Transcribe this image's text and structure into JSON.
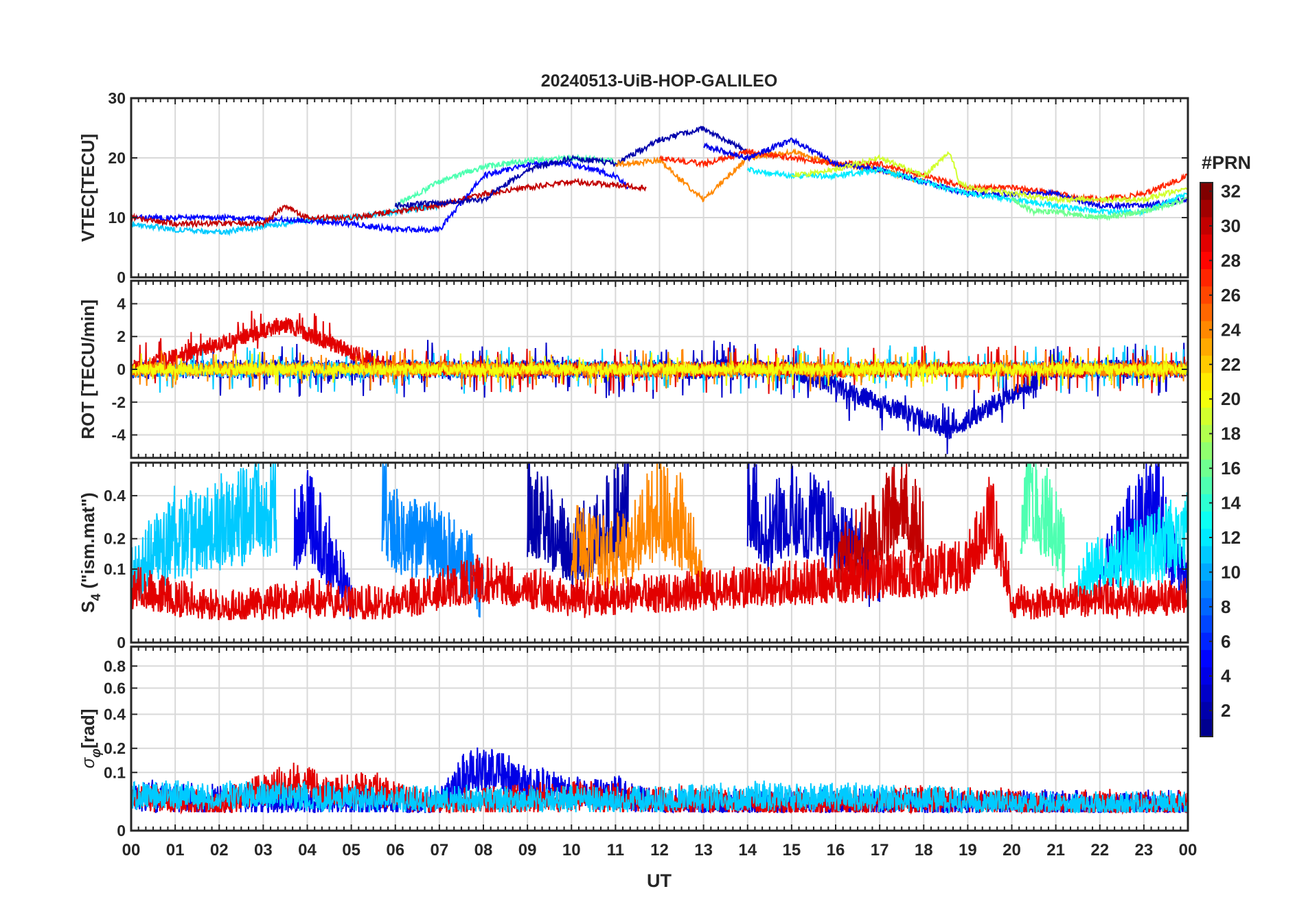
{
  "figure": {
    "title": "20240513-UiB-HOP-GALILEO",
    "xlabel": "UT",
    "x_ticks": [
      "00",
      "01",
      "02",
      "03",
      "04",
      "05",
      "06",
      "07",
      "08",
      "09",
      "10",
      "11",
      "12",
      "13",
      "14",
      "15",
      "16",
      "17",
      "18",
      "19",
      "20",
      "21",
      "22",
      "23",
      "00"
    ],
    "colorbar": {
      "label": "#PRN",
      "ticks": [
        "32",
        "30",
        "28",
        "26",
        "24",
        "22",
        "20",
        "18",
        "16",
        "14",
        "12",
        "10",
        "8",
        "6",
        "4",
        "2"
      ],
      "range": [
        1,
        32
      ],
      "colormap": "jet",
      "colors": [
        "#00008f",
        "#0000ff",
        "#0080ff",
        "#00ffff",
        "#80ff80",
        "#ffff00",
        "#ff8000",
        "#ff0000",
        "#800000"
      ]
    }
  },
  "chart_data": [
    {
      "type": "line",
      "name": "vtec",
      "ylabel": "VTEC[TECU]",
      "ylim": [
        0,
        30
      ],
      "x_range_hours": [
        0,
        24
      ],
      "grid": true,
      "y_ticks": [
        "30",
        "20",
        "10",
        "0"
      ],
      "series": [
        {
          "prn": 11,
          "x": [
            0,
            1,
            2,
            3,
            4,
            5,
            6,
            7
          ],
          "y": [
            9,
            8,
            7.5,
            8.5,
            9.5,
            10,
            11,
            12
          ]
        },
        {
          "prn": 5,
          "x": [
            0,
            2,
            4,
            5,
            6,
            7,
            8,
            9,
            10,
            11,
            11.3
          ],
          "y": [
            10,
            10,
            9.5,
            9,
            8,
            8,
            17,
            19,
            19,
            17,
            15
          ]
        },
        {
          "prn": 30,
          "x": [
            0,
            1,
            2,
            3,
            3.5,
            4,
            5,
            6,
            7,
            8,
            9,
            10,
            11,
            11.7
          ],
          "y": [
            10,
            9,
            9,
            9,
            12,
            10,
            10,
            11,
            12,
            14,
            15,
            16,
            15.5,
            15
          ]
        },
        {
          "prn": 15,
          "x": [
            6,
            7,
            8,
            9,
            10,
            11
          ],
          "y": [
            12,
            16,
            18.5,
            19.5,
            20,
            19.5
          ]
        },
        {
          "prn": 2,
          "x": [
            6,
            8,
            9,
            10,
            11,
            12,
            13,
            14
          ],
          "y": [
            12,
            13,
            18,
            20,
            19,
            23,
            25,
            21
          ]
        },
        {
          "prn": 24,
          "x": [
            11,
            12,
            13,
            14,
            15,
            16,
            17,
            18
          ],
          "y": [
            19,
            19.5,
            13,
            20,
            21,
            19,
            18,
            16
          ]
        },
        {
          "prn": 27,
          "x": [
            12,
            13,
            14,
            15,
            16,
            17,
            18,
            19,
            20,
            21,
            22,
            23,
            24
          ],
          "y": [
            20,
            19,
            21,
            20,
            19,
            19,
            17,
            15,
            15,
            14,
            13,
            14,
            17
          ]
        },
        {
          "prn": 4,
          "x": [
            13,
            14,
            15,
            16,
            17,
            18,
            19,
            20,
            21,
            22,
            23,
            24
          ],
          "y": [
            22,
            20,
            23,
            19,
            18,
            16,
            14,
            14,
            14,
            12,
            12,
            13
          ]
        },
        {
          "prn": 12,
          "x": [
            14,
            15,
            16,
            17,
            18,
            19,
            20,
            21,
            22,
            23,
            24
          ],
          "y": [
            18,
            17,
            17,
            18,
            16,
            14,
            13,
            12,
            11,
            11,
            14
          ]
        },
        {
          "prn": 19,
          "x": [
            15,
            16,
            17,
            18,
            18.6,
            18.8,
            19,
            20,
            21,
            22,
            23,
            24
          ],
          "y": [
            17,
            18,
            20,
            17,
            21,
            16,
            15,
            14,
            13,
            13,
            13,
            15
          ]
        },
        {
          "prn": 16,
          "x": [
            20,
            20.5,
            21,
            22,
            23,
            24
          ],
          "y": [
            13,
            11,
            11,
            10,
            11,
            13
          ]
        }
      ]
    },
    {
      "type": "line",
      "name": "rot",
      "ylabel": "ROT [TECU/min]",
      "ylim": [
        -5.4,
        5.4
      ],
      "x_range_hours": [
        0,
        24
      ],
      "grid": true,
      "y_ticks": [
        "4",
        "2",
        "0",
        "-2",
        "-4"
      ],
      "series": [
        {
          "prn": 3,
          "x": [
            0,
            4,
            8,
            10,
            12,
            15,
            18.6,
            21,
            24
          ],
          "y": [
            0,
            0,
            0,
            0,
            0,
            0,
            -3.7,
            0,
            0
          ],
          "noise": 0.6
        },
        {
          "prn": 11,
          "x": [
            0,
            3,
            6,
            9,
            12,
            15,
            18,
            21,
            24
          ],
          "y": [
            0,
            0,
            0,
            0,
            0,
            0,
            0,
            0,
            0
          ],
          "noise": 0.5
        },
        {
          "prn": 29,
          "x": [
            0,
            3.5,
            6,
            9,
            12,
            15,
            18,
            21,
            24
          ],
          "y": [
            0,
            2.7,
            0,
            0,
            0,
            0,
            0,
            0,
            0
          ],
          "noise": 0.5
        },
        {
          "prn": 24,
          "x": [
            0,
            4,
            8,
            10,
            12,
            15,
            18,
            21,
            24
          ],
          "y": [
            0,
            0,
            0,
            0,
            0,
            0,
            0,
            0,
            0
          ],
          "noise": 0.45
        },
        {
          "prn": 20,
          "x": [
            0,
            4,
            8,
            12,
            16,
            20,
            24
          ],
          "y": [
            0,
            0,
            0,
            0,
            0,
            0,
            0
          ],
          "noise": 0.35
        }
      ]
    },
    {
      "type": "line",
      "name": "s4",
      "ylabel": "S4 (\"ism.mat\")",
      "ylabel_main": "S",
      "ylabel_sub": "4",
      "ylabel_rest": " (\"ism.mat\")",
      "ylim": [
        0,
        0.6
      ],
      "y_scale": "sqrt",
      "x_range_hours": [
        0,
        24
      ],
      "grid": true,
      "y_ticks": [
        "0.4",
        "0.2",
        "0.1",
        "0"
      ],
      "series": [
        {
          "prn": 11,
          "x": [
            0,
            1,
            2,
            3,
            3.3
          ],
          "y": [
            0.1,
            0.3,
            0.35,
            0.45,
            0.5
          ],
          "noise": 0.15
        },
        {
          "prn": 4,
          "x": [
            3.7,
            4,
            4.5,
            5
          ],
          "y": [
            0.3,
            0.4,
            0.2,
            0.05
          ],
          "noise": 0.08
        },
        {
          "prn": 9,
          "x": [
            5.7,
            6,
            7,
            8
          ],
          "y": [
            0.5,
            0.3,
            0.25,
            0.1
          ],
          "noise": 0.12
        },
        {
          "prn": 2,
          "x": [
            9,
            9.5,
            10,
            11,
            11.3
          ],
          "y": [
            0.45,
            0.35,
            0.2,
            0.4,
            0.55
          ],
          "noise": 0.1
        },
        {
          "prn": 24,
          "x": [
            10,
            11,
            12,
            12.5,
            13
          ],
          "y": [
            0.25,
            0.2,
            0.45,
            0.35,
            0.1
          ],
          "noise": 0.12
        },
        {
          "prn": 3,
          "x": [
            14,
            14.5,
            15,
            16,
            16.5,
            17
          ],
          "y": [
            0.5,
            0.3,
            0.45,
            0.3,
            0.2,
            0.1
          ],
          "noise": 0.12
        },
        {
          "prn": 30,
          "x": [
            16,
            17,
            17.5,
            18
          ],
          "y": [
            0.15,
            0.3,
            0.55,
            0.3
          ],
          "noise": 0.12
        },
        {
          "prn": 15,
          "x": [
            20.2,
            20.5,
            21,
            21.2
          ],
          "y": [
            0.4,
            0.55,
            0.3,
            0.2
          ],
          "noise": 0.1
        },
        {
          "prn": 4,
          "x": [
            22,
            22.5,
            23,
            23.3,
            23.6,
            24
          ],
          "y": [
            0.15,
            0.25,
            0.4,
            0.5,
            0.2,
            0.1
          ],
          "noise": 0.1
        },
        {
          "prn": 12,
          "x": [
            21.5,
            22,
            23,
            24
          ],
          "y": [
            0.1,
            0.15,
            0.2,
            0.3
          ],
          "noise": 0.08
        },
        {
          "prn": 29,
          "x": [
            0,
            2,
            4,
            6,
            8,
            10,
            12,
            14,
            16,
            18,
            19,
            19.5,
            20,
            22,
            24
          ],
          "y": [
            0.08,
            0.03,
            0.05,
            0.04,
            0.1,
            0.05,
            0.06,
            0.08,
            0.1,
            0.12,
            0.15,
            0.4,
            0.04,
            0.05,
            0.05
          ],
          "noise": 0.03
        }
      ]
    },
    {
      "type": "line",
      "name": "sigma_phi",
      "ylabel": "σφ[rad]",
      "ylabel_main": "σ",
      "ylabel_sub": "φ",
      "ylabel_rest": "[rad]",
      "ylim": [
        0,
        1
      ],
      "y_scale": "sqrt",
      "x_range_hours": [
        0,
        24
      ],
      "grid": true,
      "y_ticks": [
        "0.8",
        "0.6",
        "0.4",
        "0.2",
        "0.1",
        "0"
      ],
      "series": [
        {
          "prn": 4,
          "x": [
            0,
            3,
            7,
            7.5,
            8,
            9,
            10,
            11,
            12,
            15,
            18,
            21,
            24
          ],
          "y": [
            0.05,
            0.04,
            0.03,
            0.12,
            0.15,
            0.09,
            0.06,
            0.06,
            0.03,
            0.03,
            0.03,
            0.03,
            0.03
          ],
          "noise": 0.04
        },
        {
          "prn": 29,
          "x": [
            0,
            2,
            3.8,
            4.5,
            5.5,
            6,
            7,
            10,
            12,
            15,
            18,
            21,
            24
          ],
          "y": [
            0.05,
            0.03,
            0.1,
            0.06,
            0.07,
            0.05,
            0.03,
            0.05,
            0.04,
            0.03,
            0.04,
            0.03,
            0.03
          ],
          "noise": 0.035
        },
        {
          "prn": 11,
          "x": [
            0,
            3,
            6,
            9,
            12,
            15,
            18,
            21,
            24
          ],
          "y": [
            0.05,
            0.05,
            0.04,
            0.04,
            0.04,
            0.05,
            0.04,
            0.03,
            0.03
          ],
          "noise": 0.025
        }
      ]
    }
  ]
}
